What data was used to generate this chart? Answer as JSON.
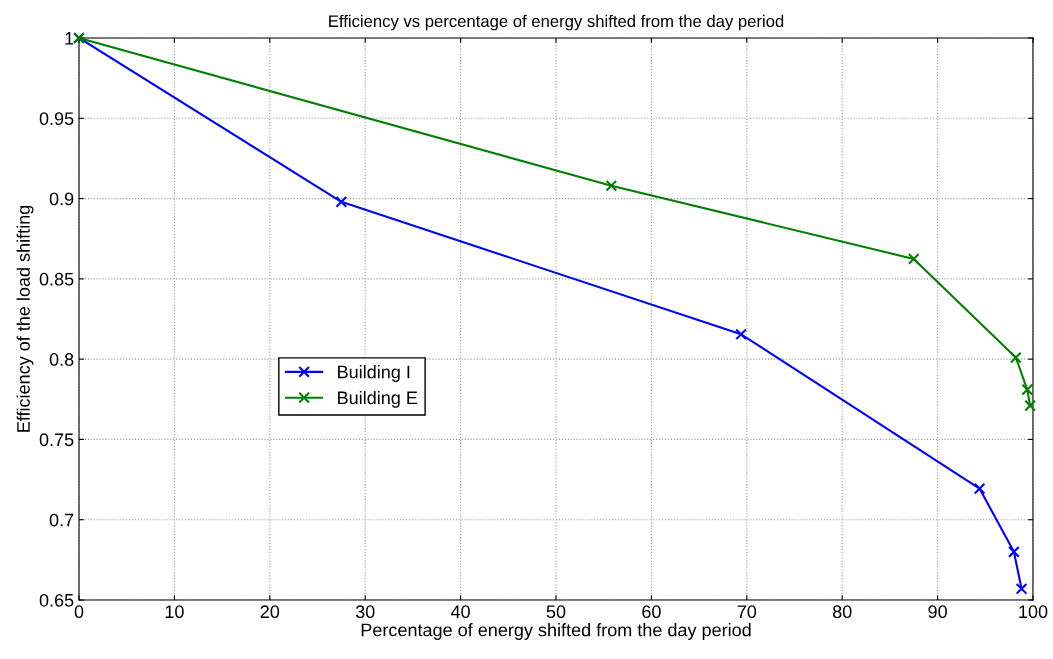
{
  "chart_data": {
    "type": "line",
    "title": "Efficiency vs percentage of energy shifted from the day period",
    "xlabel": "Percentage of energy shifted from the day period",
    "ylabel": "Efficiency of the load shifting",
    "xlim": [
      0,
      100
    ],
    "xticks": [
      0,
      10,
      20,
      30,
      40,
      50,
      60,
      70,
      80,
      90,
      100
    ],
    "ylim": [
      0.65,
      1
    ],
    "yticks": [
      0.65,
      0.7,
      0.75,
      0.8,
      0.85,
      0.9,
      0.95,
      1
    ],
    "grid": true,
    "legend": "left",
    "marker": "cross",
    "line_style": "solid",
    "series": [
      {
        "name": "Building I",
        "color": "#0000ff",
        "x": [
          0,
          27.5,
          69.4,
          94.4,
          98.0,
          98.8
        ],
        "values": [
          1,
          0.898,
          0.8155,
          0.7194,
          0.68,
          0.657
        ]
      },
      {
        "name": "Building E",
        "color": "#008000",
        "x": [
          0,
          55.8,
          87.5,
          98.2,
          99.4,
          99.7
        ],
        "values": [
          1,
          0.908,
          0.8624,
          0.801,
          0.781,
          0.771
        ]
      }
    ]
  }
}
